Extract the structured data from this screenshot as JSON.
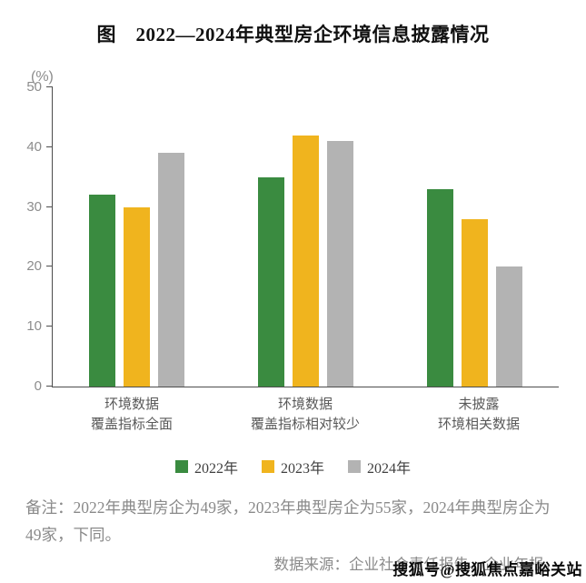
{
  "page": {
    "title": "图　2022—2024年典型房企环境信息披露情况"
  },
  "chart_data": {
    "type": "bar",
    "title": "图 2022—2024年典型房企环境信息披露情况",
    "unit_label": "(%)",
    "xlabel": "",
    "ylabel": "(%)",
    "ylim": [
      0,
      50
    ],
    "yticks": [
      0,
      10,
      20,
      30,
      40,
      50
    ],
    "grid": false,
    "legend_position": "bottom",
    "categories": [
      [
        "环境数据",
        "覆盖指标全面"
      ],
      [
        "环境数据",
        "覆盖指标相对较少"
      ],
      [
        "未披露",
        "环境相关数据"
      ]
    ],
    "series": [
      {
        "name": "2022年",
        "color": "#3a8b40",
        "values": [
          32,
          35,
          33
        ]
      },
      {
        "name": "2023年",
        "color": "#f0b41e",
        "values": [
          30,
          42,
          28
        ]
      },
      {
        "name": "2024年",
        "color": "#b3b3b3",
        "values": [
          39,
          41,
          20
        ]
      }
    ]
  },
  "notes": {
    "remark": "备注：2022年典型房企为49家，2023年典型房企为55家，2024年典型房企为49家，下同。",
    "source": "数据来源：企业社会责任报告、企业年报。"
  },
  "watermark": "搜狐号@搜狐焦点嘉峪关站"
}
